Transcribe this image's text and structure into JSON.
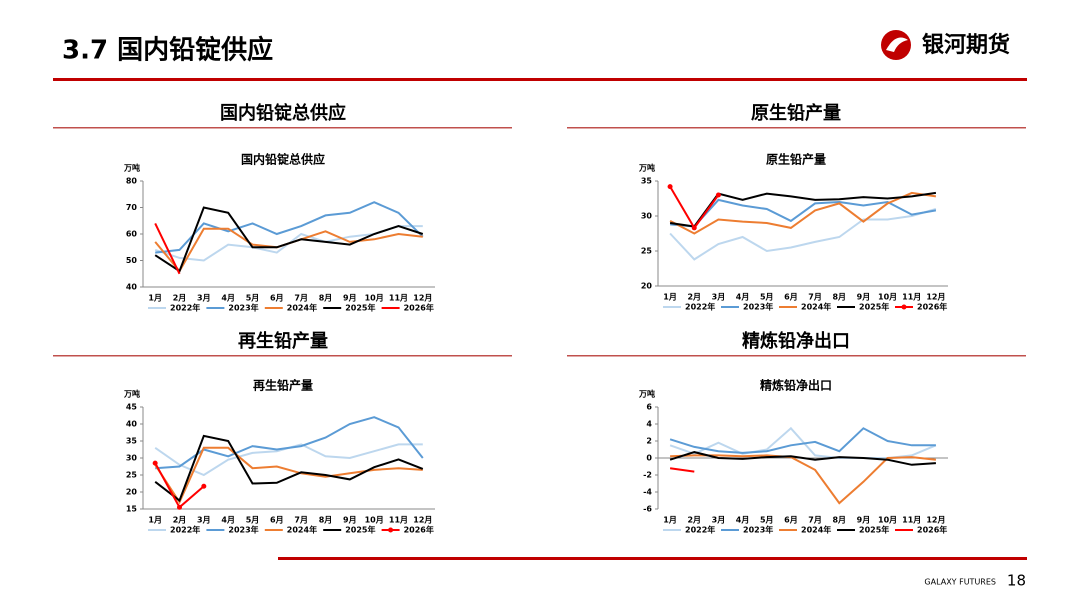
{
  "header": {
    "title": "3.7 国内铅锭供应",
    "logo": "银河期货"
  },
  "sections": [
    "国内铅锭总供应",
    "原生铅产量",
    "再生铅产量",
    "精炼铅净出口"
  ],
  "footer": {
    "brand": "GALAXY FUTURES",
    "page": "18"
  },
  "chart_data": [
    {
      "type": "line",
      "title": "国内铅锭总供应",
      "y_label": "万吨",
      "categories": [
        "1月",
        "2月",
        "3月",
        "4月",
        "5月",
        "6月",
        "7月",
        "8月",
        "9月",
        "10月",
        "11月",
        "12月"
      ],
      "ylim": [
        40,
        80
      ],
      "yticks": [
        40,
        50,
        60,
        70,
        80
      ],
      "series": [
        {
          "name": "2022年",
          "color": "#bdd7ee",
          "values": [
            54,
            51,
            50,
            56,
            55,
            53,
            60,
            57,
            59,
            60,
            63,
            63
          ]
        },
        {
          "name": "2023年",
          "color": "#5b9bd5",
          "values": [
            53,
            54,
            64,
            61,
            64,
            60,
            63,
            67,
            68,
            72,
            68,
            59
          ]
        },
        {
          "name": "2024年",
          "color": "#ed7d31",
          "values": [
            57,
            46,
            62,
            62,
            56,
            55,
            58,
            61,
            57,
            58,
            60,
            59
          ]
        },
        {
          "name": "2025年",
          "color": "#000000",
          "values": [
            52,
            46,
            70,
            68,
            55,
            55,
            58,
            57,
            56,
            60,
            63,
            60
          ]
        },
        {
          "name": "2026年",
          "color": "#ff0000",
          "values": [
            64,
            45,
            null,
            null,
            null,
            null,
            null,
            null,
            null,
            null,
            null,
            null
          ]
        }
      ]
    },
    {
      "type": "line",
      "title": "原生铅产量",
      "y_label": "万吨",
      "categories": [
        "1月",
        "2月",
        "3月",
        "4月",
        "5月",
        "6月",
        "7月",
        "8月",
        "9月",
        "10月",
        "11月",
        "12月"
      ],
      "ylim": [
        20,
        35
      ],
      "yticks": [
        20,
        25,
        30,
        35
      ],
      "series": [
        {
          "name": "2022年",
          "color": "#bdd7ee",
          "values": [
            27.5,
            23.8,
            26,
            27,
            25,
            25.5,
            26.3,
            27,
            29.5,
            29.5,
            30,
            31
          ]
        },
        {
          "name": "2023年",
          "color": "#5b9bd5",
          "values": [
            28.8,
            28.5,
            32.3,
            31.5,
            31,
            29.3,
            31.8,
            32,
            31.5,
            32,
            30.2,
            30.8
          ]
        },
        {
          "name": "2024年",
          "color": "#ed7d31",
          "values": [
            29.3,
            27.5,
            29.5,
            29.2,
            29,
            28.3,
            30.8,
            31.8,
            29.2,
            31.8,
            33.3,
            32.8
          ]
        },
        {
          "name": "2025年",
          "color": "#000000",
          "values": [
            29,
            28.5,
            33.2,
            32.3,
            33.2,
            32.8,
            32.3,
            32.4,
            32.7,
            32.5,
            32.8,
            33.3
          ]
        },
        {
          "name": "2026年",
          "color": "#ff0000",
          "markers": true,
          "values": [
            34.2,
            28.3,
            33,
            null,
            null,
            null,
            null,
            null,
            null,
            null,
            null,
            null
          ]
        }
      ]
    },
    {
      "type": "line",
      "title": "再生铅产量",
      "y_label": "万吨",
      "categories": [
        "1月",
        "2月",
        "3月",
        "4月",
        "5月",
        "6月",
        "7月",
        "8月",
        "9月",
        "10月",
        "11月",
        "12月"
      ],
      "ylim": [
        15,
        45
      ],
      "yticks": [
        15,
        20,
        25,
        30,
        35,
        40,
        45
      ],
      "series": [
        {
          "name": "2022年",
          "color": "#bdd7ee",
          "values": [
            33,
            28,
            25,
            29.5,
            31.5,
            32,
            34,
            30.5,
            30,
            32,
            34,
            34
          ]
        },
        {
          "name": "2023年",
          "color": "#5b9bd5",
          "values": [
            27,
            27.5,
            32.5,
            30.5,
            33.5,
            32.5,
            33.5,
            36,
            40,
            42,
            39,
            30
          ]
        },
        {
          "name": "2024年",
          "color": "#ed7d31",
          "values": [
            28,
            17,
            33,
            33,
            27,
            27.5,
            25.5,
            24.5,
            25.5,
            26.5,
            27,
            26.5
          ]
        },
        {
          "name": "2025年",
          "color": "#000000",
          "values": [
            23,
            17.5,
            36.5,
            35,
            22.5,
            22.7,
            25.8,
            25,
            23.7,
            27.3,
            29.6,
            26.8
          ]
        },
        {
          "name": "2026年",
          "color": "#ff0000",
          "markers": true,
          "values": [
            28.5,
            15.5,
            21.7,
            null,
            null,
            null,
            null,
            null,
            null,
            null,
            null,
            null
          ]
        }
      ]
    },
    {
      "type": "line",
      "title": "精炼铅净出口",
      "y_label": "万吨",
      "categories": [
        "1月",
        "2月",
        "3月",
        "4月",
        "5月",
        "6月",
        "7月",
        "8月",
        "9月",
        "10月",
        "11月",
        "12月"
      ],
      "ylim": [
        -6,
        6
      ],
      "yticks": [
        -6,
        -4,
        -2,
        0,
        2,
        4,
        6
      ],
      "series": [
        {
          "name": "2022年",
          "color": "#bdd7ee",
          "values": [
            1.5,
            0.5,
            1.8,
            0.5,
            1,
            3.5,
            0.3,
            0,
            0,
            0,
            0.3,
            1.5
          ]
        },
        {
          "name": "2023年",
          "color": "#5b9bd5",
          "values": [
            2.2,
            1.3,
            0.8,
            0.6,
            0.8,
            1.5,
            1.9,
            0.8,
            3.5,
            2,
            1.5,
            1.5
          ]
        },
        {
          "name": "2024年",
          "color": "#ed7d31",
          "values": [
            0.2,
            0.3,
            0.3,
            0.2,
            0.3,
            0.1,
            -1.4,
            -5.3,
            -2.8,
            0,
            0.1,
            -0.2
          ]
        },
        {
          "name": "2025年",
          "color": "#000000",
          "values": [
            -0.2,
            0.7,
            0,
            -0.1,
            0.1,
            0.2,
            -0.2,
            0.1,
            0,
            -0.2,
            -0.8,
            -0.6
          ]
        },
        {
          "name": "2026年",
          "color": "#ff0000",
          "values": [
            -1.2,
            -1.6,
            null,
            null,
            null,
            null,
            null,
            null,
            null,
            null,
            null,
            null
          ]
        }
      ]
    }
  ]
}
